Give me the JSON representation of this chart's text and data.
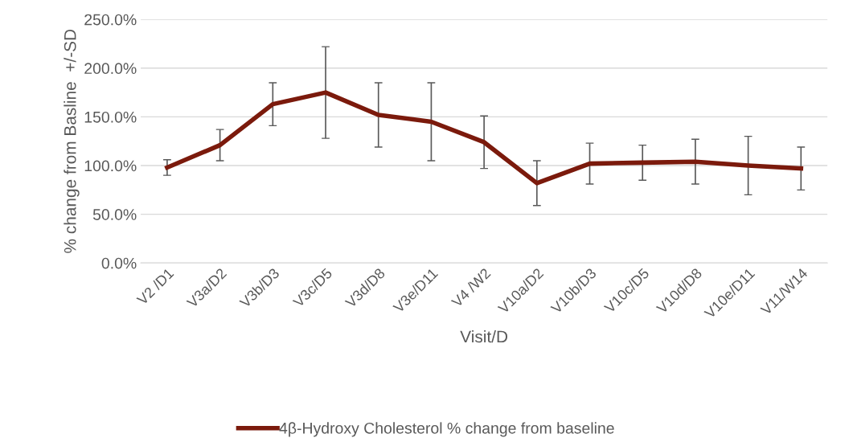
{
  "chart_data": {
    "type": "line",
    "categories": [
      "V2 /D1",
      "V3a/D2",
      "V3b/D3",
      "V3c/D5",
      "V3d/D8",
      "V3e/D11",
      "V4 /W2",
      "V10a/D2",
      "V10b/D3",
      "V10c/D5",
      "V10d/D8",
      "V10e/D11",
      "V11/W14"
    ],
    "series": [
      {
        "name": "4β-Hydroxy Cholesterol % change from baseline",
        "color": "#7b1a0c",
        "values": [
          98,
          121,
          163,
          175,
          152,
          145,
          124,
          82,
          102,
          103,
          104,
          100,
          97
        ],
        "errors": [
          8,
          16,
          22,
          47,
          33,
          40,
          27,
          23,
          21,
          18,
          23,
          30,
          22
        ]
      }
    ],
    "xlabel": "Visit/D",
    "ylabel": "% change from Basline  +/-SD",
    "ylim": [
      0,
      250
    ],
    "yticks": [
      {
        "value": 0,
        "label": "0.0%"
      },
      {
        "value": 50,
        "label": "50.0%"
      },
      {
        "value": 100,
        "label": "100.0%"
      },
      {
        "value": 150,
        "label": "150.0%"
      },
      {
        "value": 200,
        "label": "200.0%"
      },
      {
        "value": 250,
        "label": "250.0%"
      }
    ],
    "grid": "y",
    "legend": "bottom",
    "marker": "none",
    "line_style": "solid"
  }
}
